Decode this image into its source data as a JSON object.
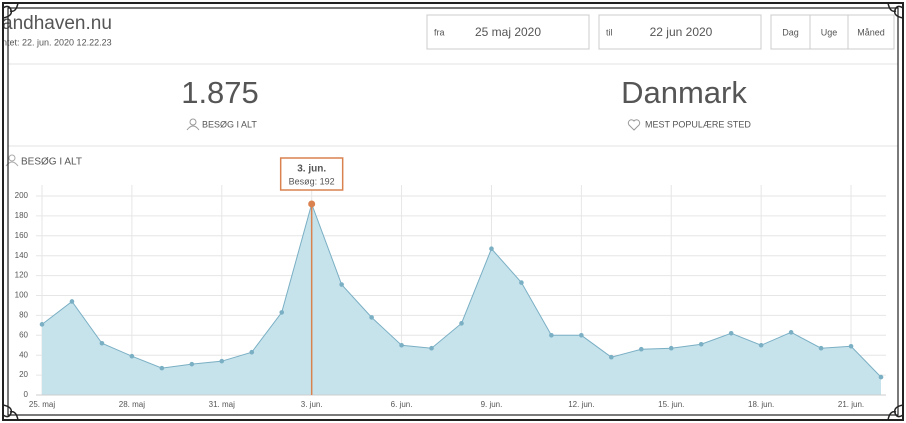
{
  "header": {
    "site": "andhaven.nu",
    "updated": "ntet: 22. jun. 2020 12.22.23"
  },
  "date_range": {
    "from_label": "fra",
    "from": "25 maj 2020",
    "to_label": "til",
    "to": "22 jun 2020"
  },
  "period_buttons": [
    "Dag",
    "Uge",
    "Måned"
  ],
  "stats": [
    {
      "value": "1.875",
      "label": "BESØG I ALT"
    },
    {
      "value": "Danmark",
      "label": "MEST POPULÆRE STED"
    }
  ],
  "chart_data": {
    "type": "area",
    "title": "BESØG I ALT",
    "categories": [
      "25. maj",
      null,
      null,
      "28. maj",
      null,
      null,
      "31. maj",
      null,
      null,
      "3. jun.",
      null,
      null,
      "6. jun.",
      null,
      null,
      "9. jun.",
      null,
      null,
      "12. jun.",
      null,
      null,
      "15. jun.",
      null,
      null,
      "18. jun.",
      null,
      null,
      "21. jun.",
      null
    ],
    "values": [
      71,
      94,
      52,
      39,
      27,
      31,
      34,
      43,
      83,
      192,
      111,
      78,
      50,
      47,
      72,
      147,
      113,
      60,
      60,
      38,
      46,
      47,
      51,
      62,
      50,
      63,
      47,
      49,
      18
    ],
    "color": "#7aafc4",
    "fill": "#c6e3ec",
    "ylim": [
      0,
      200
    ],
    "yticks": [
      0,
      20,
      40,
      60,
      80,
      100,
      120,
      140,
      160,
      180,
      200
    ],
    "grid": true,
    "tooltip": {
      "title": "3. jun.",
      "text": "Besøg: 192",
      "color": "#d9824f"
    }
  }
}
